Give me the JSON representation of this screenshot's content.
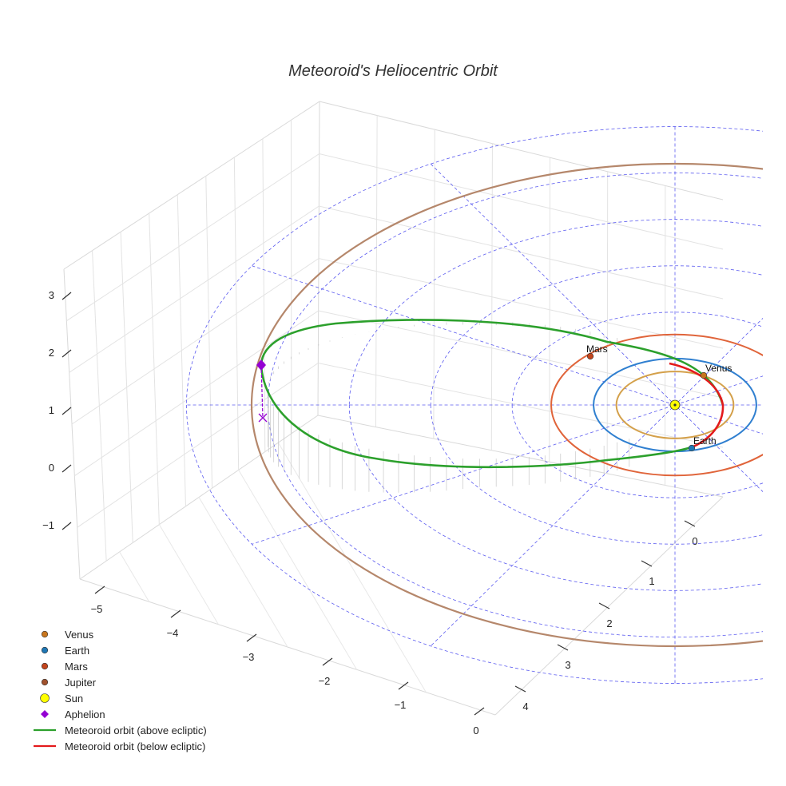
{
  "chart_data": {
    "type": "scatter3d",
    "title": "Meteoroid's Heliocentric Orbit",
    "x_ticks": [
      "−5",
      "−4",
      "−3",
      "−2",
      "−1",
      "0"
    ],
    "y_ticks": [
      "0",
      "1",
      "2",
      "3",
      "4"
    ],
    "z_ticks": [
      "3",
      "2",
      "1",
      "0",
      "−1"
    ],
    "planets": [
      {
        "name": "Venus",
        "label": "Venus",
        "orbit_radius_au": 0.72,
        "color": "#d4a04a",
        "marker": "#c8761e"
      },
      {
        "name": "Earth",
        "label": "Earth",
        "orbit_radius_au": 1.0,
        "color": "#2f7fd0",
        "marker": "#1f77b4"
      },
      {
        "name": "Mars",
        "label": "Mars",
        "orbit_radius_au": 1.52,
        "color": "#e0643a",
        "marker": "#c2451d"
      },
      {
        "name": "Jupiter",
        "label": "",
        "orbit_radius_au": 5.2,
        "color": "#b5876b",
        "marker": "#a0522d"
      }
    ],
    "sun": {
      "name": "Sun",
      "color": "#ffff00"
    },
    "aphelion": {
      "name": "Aphelion",
      "color": "#9400d3"
    },
    "meteoroid": {
      "above_label": "Meteoroid orbit (above ecliptic)",
      "below_label": "Meteoroid orbit (below ecliptic)",
      "above_color": "#2ca02c",
      "below_color": "#e31a1c"
    },
    "legend": [
      {
        "label": "Venus",
        "symbol": "circle",
        "color": "#c8761e"
      },
      {
        "label": "Earth",
        "symbol": "circle",
        "color": "#1f77b4"
      },
      {
        "label": "Mars",
        "symbol": "circle",
        "color": "#c2451d"
      },
      {
        "label": "Jupiter",
        "symbol": "circle",
        "color": "#a0522d"
      },
      {
        "label": "Sun",
        "symbol": "circle-large",
        "color": "#ffff00"
      },
      {
        "label": "Aphelion",
        "symbol": "diamond",
        "color": "#9400d3"
      },
      {
        "label": "Meteoroid orbit (above ecliptic)",
        "symbol": "line",
        "color": "#2ca02c"
      },
      {
        "label": "Meteoroid orbit (below ecliptic)",
        "symbol": "line",
        "color": "#e31a1c"
      }
    ]
  }
}
